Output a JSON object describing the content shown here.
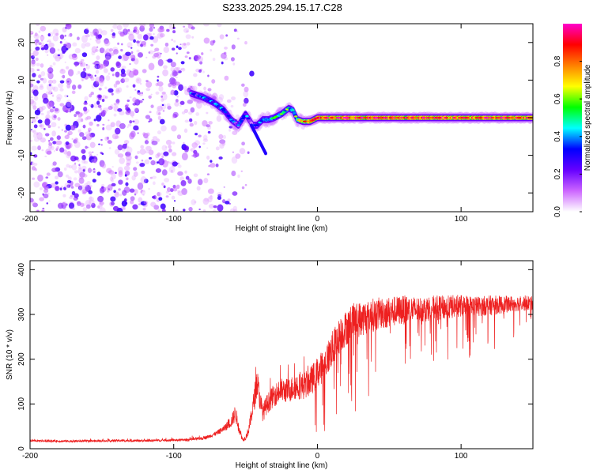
{
  "title": "S233.2025.294.15.17.C28",
  "chart_data": [
    {
      "type": "heatmap",
      "xlabel": "Height of straight line (km)",
      "ylabel": "Frequency (Hz)",
      "xlim": [
        -200,
        150
      ],
      "ylim": [
        -25,
        25
      ],
      "xticks": [
        -200,
        -100,
        0,
        100
      ],
      "yticks": [
        -20,
        -10,
        0,
        10,
        20
      ],
      "colorbar": {
        "label": "Normalized spectral amplitude",
        "range": [
          0,
          1
        ],
        "ticks": [
          0.0,
          0.2,
          0.4,
          0.6,
          0.8
        ],
        "colormap": [
          "#ffffff",
          "#cc66ff",
          "#6600ff",
          "#0000ff",
          "#00ffff",
          "#00ff00",
          "#ffff00",
          "#ff8000",
          "#ff0000",
          "#ff00cc"
        ]
      },
      "ridge": {
        "x": [
          -88,
          -80,
          -72,
          -65,
          -60,
          -55,
          -50,
          -45,
          -42,
          -38,
          -34,
          -30,
          -25,
          -20,
          -17,
          -14,
          -10,
          -5,
          0,
          20,
          50,
          100,
          150
        ],
        "y": [
          6.5,
          5.5,
          4,
          2,
          -0.5,
          -2,
          1,
          -2,
          -2,
          -0.5,
          -0.5,
          0,
          1,
          2.5,
          2,
          -0.5,
          -1,
          -1,
          0,
          0,
          0,
          0,
          0
        ],
        "amplitude": [
          0.3,
          0.35,
          0.35,
          0.35,
          0.3,
          0.3,
          0.3,
          0.25,
          0.35,
          0.4,
          0.4,
          0.4,
          0.45,
          0.5,
          0.45,
          0.6,
          0.7,
          0.8,
          0.85,
          0.9,
          0.9,
          0.85,
          0.85
        ]
      },
      "noise_region_x": [
        -200,
        -45
      ]
    },
    {
      "type": "line",
      "xlabel": "Height of straight line (km)",
      "ylabel": "SNR (10 * v/v)",
      "xlim": [
        -200,
        150
      ],
      "ylim": [
        0,
        420
      ],
      "xticks": [
        -200,
        -100,
        0,
        100
      ],
      "yticks": [
        0,
        100,
        200,
        300,
        400
      ],
      "color": "#ee2020",
      "series": [
        {
          "x": [
            -200,
            -180,
            -160,
            -140,
            -120,
            -100,
            -90,
            -80,
            -75,
            -70,
            -65,
            -60,
            -57,
            -55,
            -52,
            -50,
            -48,
            -45,
            -42,
            -40,
            -38,
            -35,
            -30,
            -25,
            -20,
            -15,
            -10,
            -5,
            0,
            5,
            10,
            15,
            20,
            25,
            30,
            40,
            50,
            60,
            70,
            80,
            90,
            100,
            110,
            120,
            130,
            140,
            150
          ],
          "y": [
            18,
            17,
            17,
            18,
            18,
            19,
            20,
            23,
            28,
            35,
            45,
            60,
            80,
            50,
            20,
            25,
            40,
            90,
            150,
            110,
            80,
            100,
            120,
            130,
            130,
            140,
            140,
            150,
            170,
            190,
            220,
            250,
            270,
            285,
            290,
            300,
            305,
            310,
            310,
            315,
            315,
            320,
            318,
            320,
            322,
            325,
            325
          ],
          "spread": [
            5,
            5,
            5,
            5,
            5,
            5,
            6,
            7,
            8,
            10,
            15,
            25,
            40,
            25,
            8,
            12,
            20,
            45,
            70,
            50,
            40,
            45,
            50,
            55,
            55,
            60,
            60,
            65,
            70,
            75,
            80,
            80,
            80,
            80,
            80,
            75,
            70,
            65,
            60,
            55,
            55,
            50,
            45,
            45,
            40,
            35,
            35
          ]
        }
      ]
    }
  ]
}
